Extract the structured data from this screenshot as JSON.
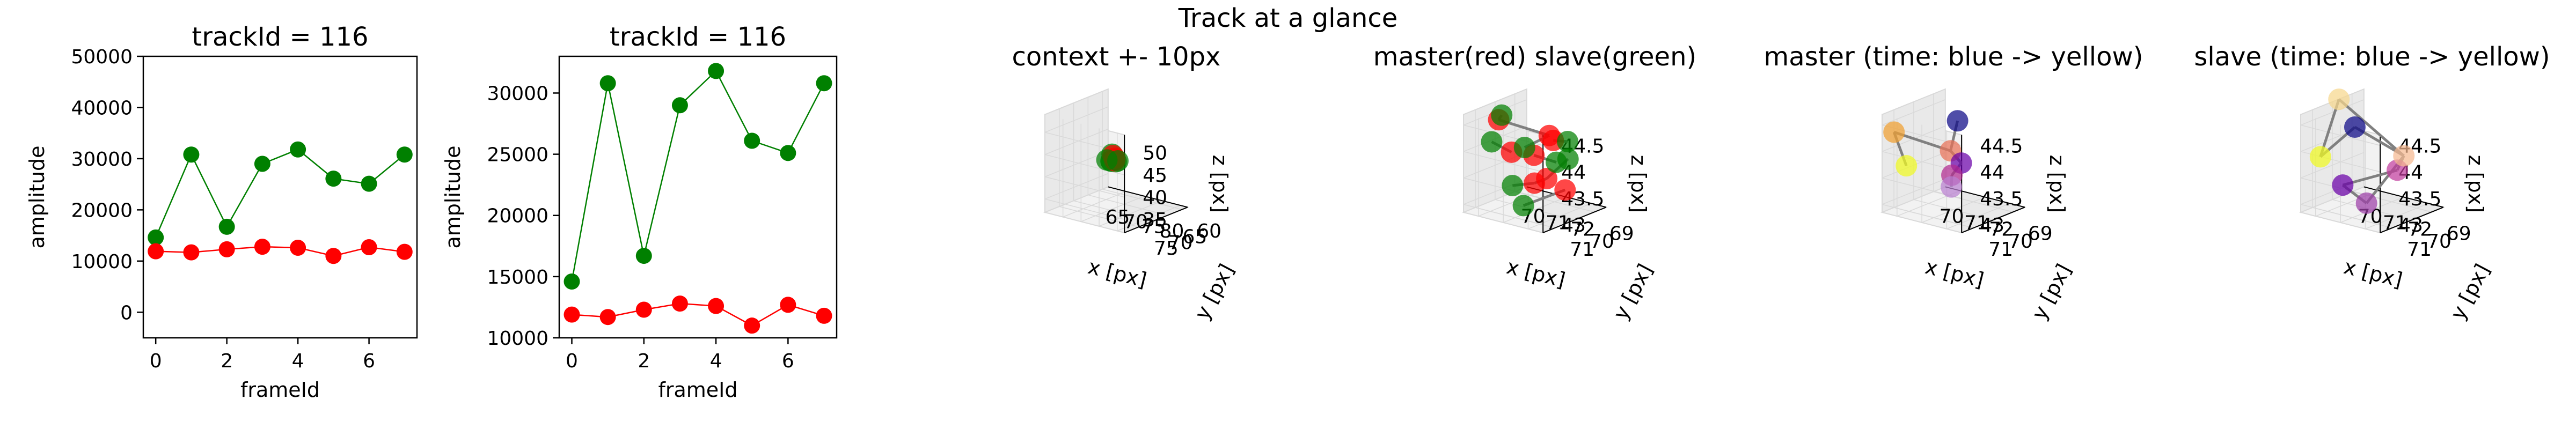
{
  "figure": {
    "suptitle": "Track at a glance"
  },
  "colors": {
    "master": "#ff0000",
    "slave": "#008000",
    "link": "#808080",
    "pane": "#f2f2f2",
    "pane_side": "#e9e9e9",
    "grid": "#d9d9d9",
    "axis": "#000000"
  },
  "chart_data": [
    {
      "type": "line",
      "title": "trackId = 116",
      "xlabel": "frameId",
      "ylabel": "amplitude",
      "xlim": [
        -0.35,
        7.35
      ],
      "ylim": [
        -5000,
        50000
      ],
      "xticks": [
        0,
        2,
        4,
        6
      ],
      "yticks": [
        0,
        10000,
        20000,
        30000,
        40000,
        50000
      ],
      "x": [
        0,
        1,
        2,
        3,
        4,
        5,
        6,
        7
      ],
      "series": [
        {
          "color": "#008000",
          "values": [
            14600,
            30800,
            16700,
            29000,
            31800,
            26100,
            25100,
            30800
          ]
        },
        {
          "color": "#ff0000",
          "values": [
            11900,
            11700,
            12300,
            12800,
            12600,
            11000,
            12700,
            11800
          ]
        }
      ]
    },
    {
      "type": "line",
      "title": "trackId = 116",
      "xlabel": "frameId",
      "ylabel": "amplitude",
      "xlim": [
        -0.35,
        7.35
      ],
      "ylim": [
        10000,
        33000
      ],
      "xticks": [
        0,
        2,
        4,
        6
      ],
      "yticks": [
        10000,
        15000,
        20000,
        25000,
        30000
      ],
      "x": [
        0,
        1,
        2,
        3,
        4,
        5,
        6,
        7
      ],
      "series": [
        {
          "color": "#008000",
          "values": [
            14600,
            30800,
            16700,
            29000,
            31800,
            26100,
            25100,
            30800
          ]
        },
        {
          "color": "#ff0000",
          "values": [
            11900,
            11700,
            12300,
            12800,
            12600,
            11000,
            12700,
            11800
          ]
        }
      ]
    },
    {
      "type": "scatter3d",
      "title": "context +- 10px",
      "xlabel": "x [px]",
      "ylabel": "y [px]",
      "zlabel": "z [px]",
      "xlim": [
        60,
        82
      ],
      "ylim": [
        58,
        80
      ],
      "zlim": [
        32,
        54
      ],
      "xticks": [
        65,
        70,
        75,
        80
      ],
      "yticks": [
        60,
        65,
        70,
        75
      ],
      "zticks": [
        35,
        40,
        45,
        50
      ],
      "coloring": "class",
      "points": [
        {
          "x": 70.5,
          "y": 70.2,
          "z": 43.2,
          "color": "#008000"
        },
        {
          "x": 71.3,
          "y": 69.4,
          "z": 43.0,
          "color": "#008000"
        },
        {
          "x": 71.8,
          "y": 70.5,
          "z": 43.8,
          "color": "#008000"
        },
        {
          "x": 70.3,
          "y": 69.6,
          "z": 44.5,
          "color": "#008000"
        },
        {
          "x": 71.0,
          "y": 70.8,
          "z": 43.4,
          "color": "#008000"
        },
        {
          "x": 70.8,
          "y": 69.9,
          "z": 44.4,
          "color": "#ff0000"
        },
        {
          "x": 71.5,
          "y": 70.1,
          "z": 44.0,
          "color": "#ff0000"
        },
        {
          "x": 71.2,
          "y": 69.8,
          "z": 43.3,
          "color": "#ff0000"
        },
        {
          "x": 69.2,
          "y": 70.0,
          "z": 43.1,
          "color": "#008000"
        },
        {
          "x": 72.4,
          "y": 70.2,
          "z": 43.6,
          "color": "#008000"
        }
      ],
      "links": []
    },
    {
      "type": "scatter3d",
      "title": "master(red) slave(green)",
      "xlabel": "x [px]",
      "ylabel": "y [px]",
      "zlabel": "z [px]",
      "xlim": [
        69.4,
        72.6
      ],
      "ylim": [
        68.4,
        71.6
      ],
      "zlim": [
        42.85,
        44.7
      ],
      "xticks": [
        70,
        71,
        72
      ],
      "yticks": [
        69,
        70,
        71
      ],
      "zticks": [
        43.0,
        43.5,
        44.0,
        44.5
      ],
      "coloring": "class",
      "points": [
        {
          "x": 70.1,
          "y": 70.7,
          "z": 44.55,
          "color": "#ff0000"
        },
        {
          "x": 70.3,
          "y": 70.3,
          "z": 43.9,
          "color": "#ff0000"
        },
        {
          "x": 71.5,
          "y": 69.9,
          "z": 44.3,
          "color": "#ff0000"
        },
        {
          "x": 71.2,
          "y": 70.3,
          "z": 43.95,
          "color": "#ff0000"
        },
        {
          "x": 71.0,
          "y": 69.4,
          "z": 43.35,
          "color": "#ff0000"
        },
        {
          "x": 71.5,
          "y": 69.1,
          "z": 43.15,
          "color": "#ff0000"
        },
        {
          "x": 71.3,
          "y": 70.4,
          "z": 43.45,
          "color": "#ff0000"
        },
        {
          "x": 71.9,
          "y": 70.2,
          "z": 44.3,
          "color": "#ff0000"
        },
        {
          "x": 70.7,
          "y": 71.3,
          "z": 44.8,
          "color": "#008000"
        },
        {
          "x": 72.5,
          "y": 70.8,
          "z": 44.05,
          "color": "#008000"
        },
        {
          "x": 71.3,
          "y": 70.9,
          "z": 44.2,
          "color": "#008000"
        },
        {
          "x": 72.0,
          "y": 69.6,
          "z": 44.2,
          "color": "#008000"
        },
        {
          "x": 69.5,
          "y": 70.3,
          "z": 44.0,
          "color": "#008000"
        },
        {
          "x": 70.1,
          "y": 70.0,
          "z": 43.2,
          "color": "#008000"
        },
        {
          "x": 70.3,
          "y": 69.7,
          "z": 42.8,
          "color": "#008000"
        },
        {
          "x": 71.3,
          "y": 68.7,
          "z": 43.65,
          "color": "#008000"
        }
      ],
      "links": [
        [
          0,
          8
        ],
        [
          1,
          12
        ],
        [
          2,
          10
        ],
        [
          3,
          9
        ],
        [
          4,
          15
        ],
        [
          5,
          14
        ],
        [
          6,
          13
        ],
        [
          7,
          11
        ],
        [
          0,
          2
        ],
        [
          4,
          6
        ]
      ]
    },
    {
      "type": "scatter3d",
      "title": "master (time: blue -> yellow)",
      "xlabel": "x [px]",
      "ylabel": "y [px]",
      "zlabel": "z [px]",
      "xlim": [
        69.4,
        72.6
      ],
      "ylim": [
        68.4,
        71.6
      ],
      "zlim": [
        42.85,
        44.7
      ],
      "xticks": [
        70,
        71,
        72
      ],
      "yticks": [
        69,
        70,
        71
      ],
      "zticks": [
        43.0,
        43.5,
        44.0,
        44.5
      ],
      "coloring": "time",
      "points": [
        {
          "x": 71.8,
          "y": 70.8,
          "z": 44.75,
          "color": "#0d0887"
        },
        {
          "x": 71.2,
          "y": 70.4,
          "z": 44.05,
          "color": "#e97158"
        },
        {
          "x": 70.6,
          "y": 69.1,
          "z": 43.55,
          "color": "#6a00a8"
        },
        {
          "x": 70.3,
          "y": 69.2,
          "z": 43.3,
          "color": "#b12a90"
        },
        {
          "x": 70.2,
          "y": 69.1,
          "z": 43.05,
          "color": "#b980d0"
        },
        {
          "x": 69.8,
          "y": 71.5,
          "z": 44.4,
          "color": "#f0a030"
        },
        {
          "x": 69.9,
          "y": 71.0,
          "z": 43.7,
          "color": "#f0f921"
        }
      ],
      "links": [
        [
          0,
          1
        ],
        [
          1,
          2
        ],
        [
          2,
          3
        ],
        [
          3,
          4
        ],
        [
          1,
          5
        ],
        [
          5,
          6
        ]
      ]
    },
    {
      "type": "scatter3d",
      "title": "slave (time: blue -> yellow)",
      "xlabel": "x [px]",
      "ylabel": "y [px]",
      "zlabel": "z [px]",
      "xlim": [
        69.4,
        72.6
      ],
      "ylim": [
        68.4,
        71.6
      ],
      "zlim": [
        42.85,
        44.7
      ],
      "xticks": [
        70,
        71,
        72
      ],
      "yticks": [
        69,
        70,
        71
      ],
      "zticks": [
        43.0,
        43.5,
        44.0,
        44.5
      ],
      "coloring": "time",
      "points": [
        {
          "x": 71.5,
          "y": 71.5,
          "z": 44.7,
          "color": "#0d0887"
        },
        {
          "x": 69.9,
          "y": 70.1,
          "z": 43.2,
          "color": "#6a00a8"
        },
        {
          "x": 70.3,
          "y": 69.4,
          "z": 42.8,
          "color": "#9c3fa8"
        },
        {
          "x": 71.3,
          "y": 69.1,
          "z": 43.5,
          "color": "#c03b9c"
        },
        {
          "x": 72.2,
          "y": 69.9,
          "z": 44.0,
          "color": "#f5b990"
        },
        {
          "x": 70.7,
          "y": 71.3,
          "z": 45.1,
          "color": "#f6d78c"
        },
        {
          "x": 69.4,
          "y": 70.6,
          "z": 43.75,
          "color": "#f0f921"
        }
      ],
      "links": [
        [
          0,
          4
        ],
        [
          4,
          3
        ],
        [
          3,
          1
        ],
        [
          1,
          2
        ],
        [
          2,
          4
        ],
        [
          4,
          5
        ],
        [
          5,
          6
        ],
        [
          6,
          0
        ]
      ]
    }
  ]
}
